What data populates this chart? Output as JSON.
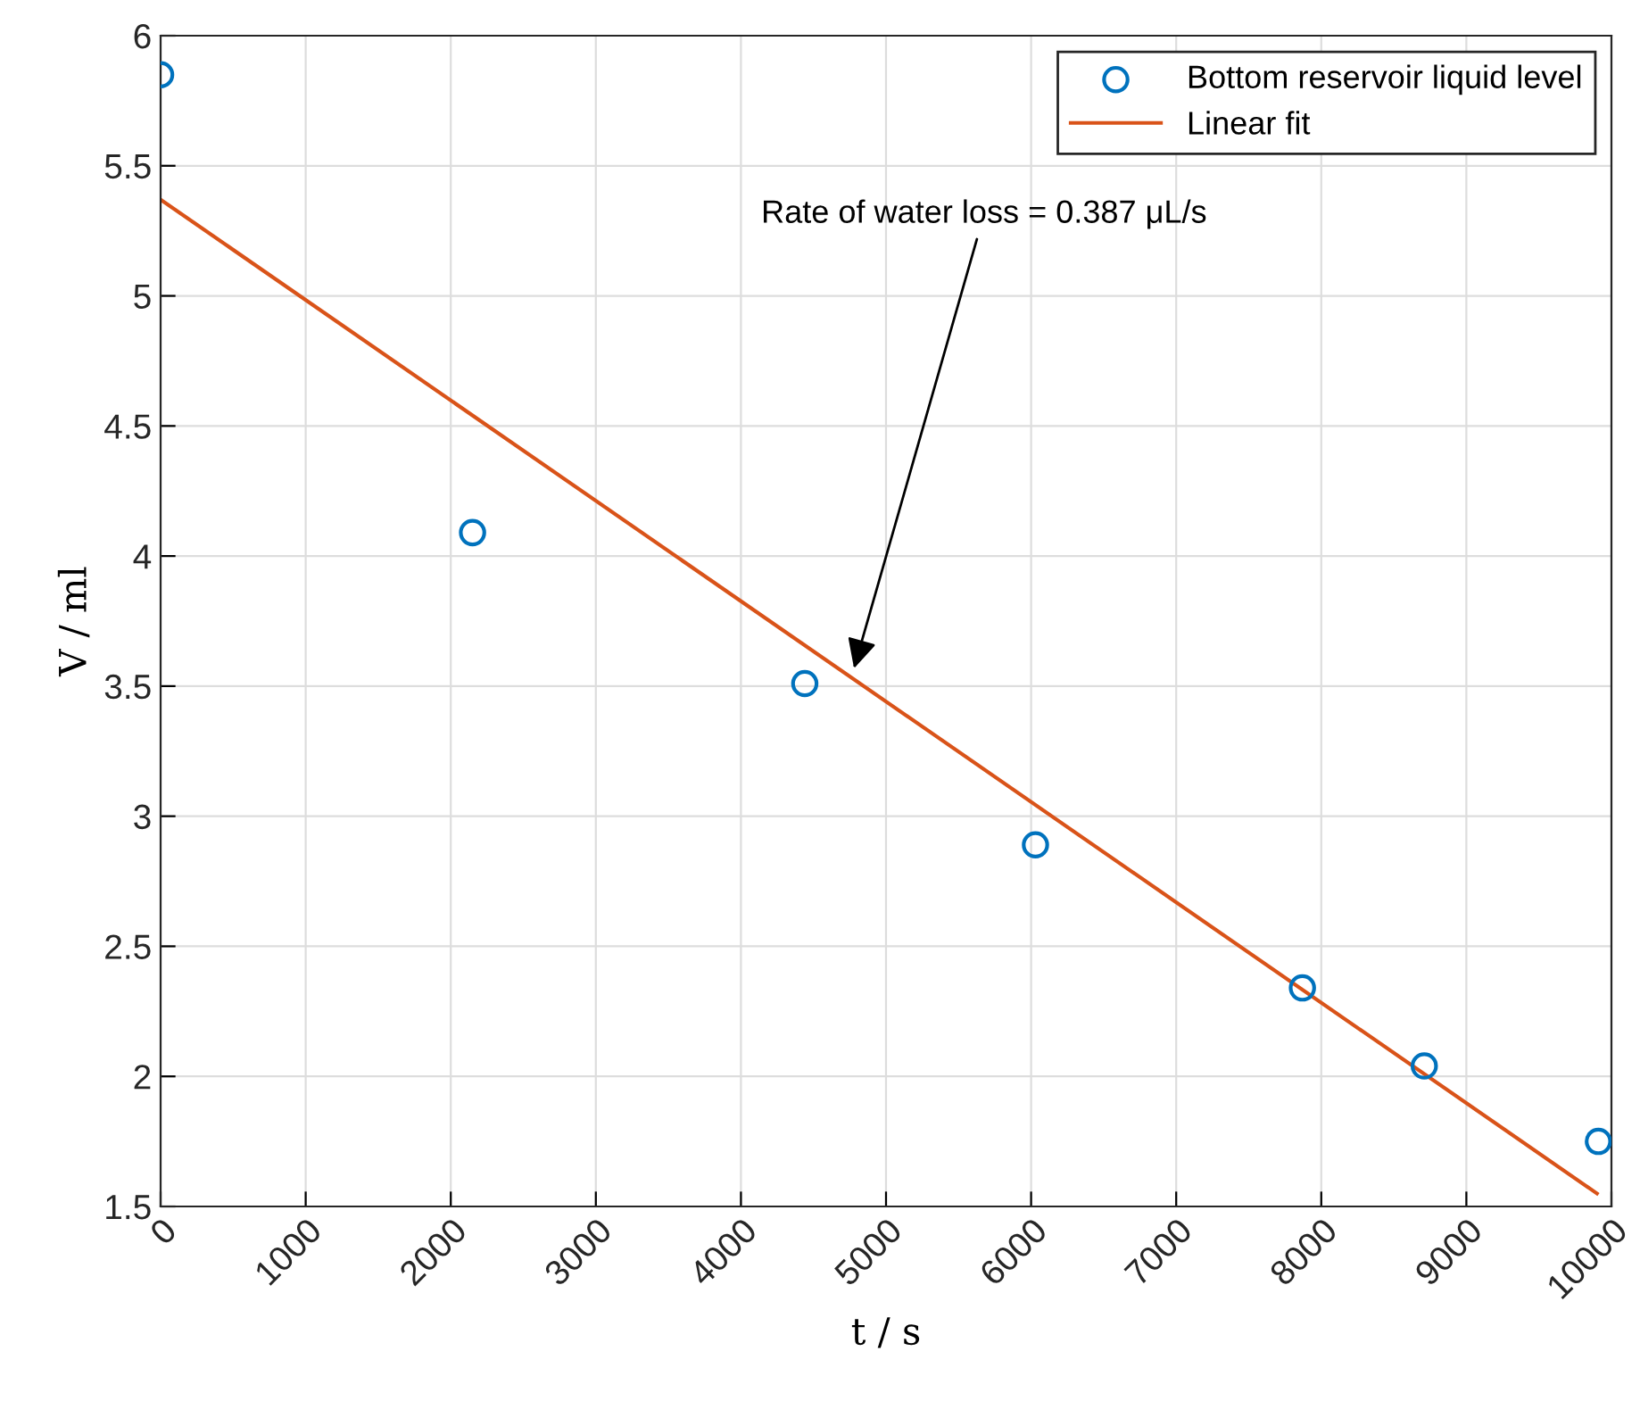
{
  "chart_data": {
    "type": "scatter",
    "xlabel": "t / s",
    "ylabel": "V / ml",
    "series": [
      {
        "name": "Bottom reservoir liquid level",
        "color": "#0072bd",
        "marker": "circle",
        "x": [
          0,
          2150,
          4440,
          6030,
          7870,
          8710,
          9910
        ],
        "values": [
          5.85,
          4.09,
          3.51,
          2.89,
          2.34,
          2.04,
          1.75
        ]
      },
      {
        "name": "Linear fit",
        "type": "line",
        "color": "#d95319",
        "marker": "none",
        "line_style": "solid",
        "x": [
          0,
          9900
        ],
        "values": [
          5.37,
          1.55
        ]
      }
    ],
    "annotations": [
      {
        "text": "Rate of water loss = 0.387 μL/s",
        "x": 4770,
        "y": 3.55
      }
    ],
    "xlim": [
      0,
      10000
    ],
    "xticks": [
      0,
      1000,
      2000,
      3000,
      4000,
      5000,
      6000,
      7000,
      8000,
      9000,
      10000
    ],
    "ylim": [
      1.5,
      6
    ],
    "yticks": [
      1.5,
      2,
      2.5,
      3,
      3.5,
      4,
      4.5,
      5,
      5.5,
      6
    ],
    "grid": true,
    "legend": "top right"
  }
}
